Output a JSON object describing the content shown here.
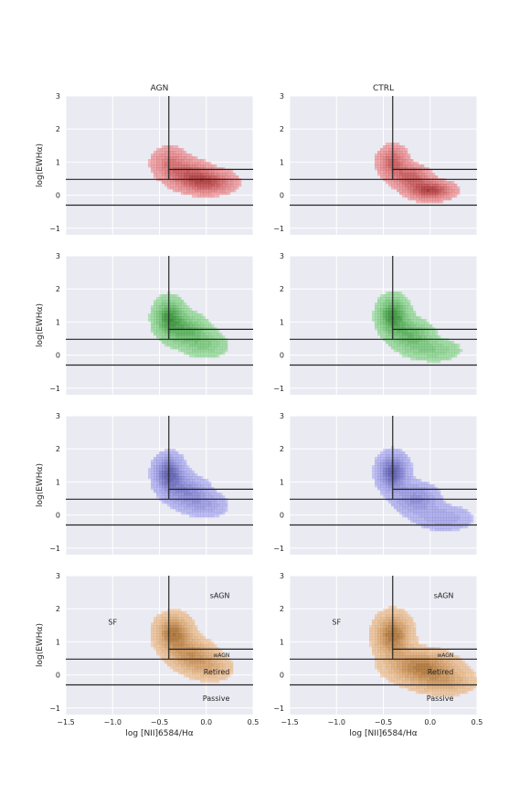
{
  "figure": {
    "column_titles": [
      "AGN",
      "CTRL"
    ],
    "xlabel": "log [NII]6584/Hα",
    "ylabel": "log(EWHα)",
    "xlim": [
      -1.5,
      0.5
    ],
    "ylim": [
      -1.2,
      3.0
    ],
    "xticks": [
      -1.5,
      -1.0,
      -0.5,
      0.0,
      0.5
    ],
    "xtick_labels": [
      "−1.5",
      "−1.0",
      "−0.5",
      "0.0",
      "0.5"
    ],
    "yticks": [
      -1,
      0,
      1,
      2,
      3
    ],
    "ytick_labels": [
      "−1",
      "0",
      "1",
      "2",
      "3"
    ],
    "background": "#eaeaf2",
    "grid": true,
    "divider_lines": {
      "vertical_x": -0.4,
      "horizontal_y_full": [
        0.4771,
        -0.301
      ],
      "horizontal_y_partial": 0.7782
    },
    "row_colors": [
      "#f03030",
      "#2ec42e",
      "#6a6af0",
      "#f0902a"
    ],
    "region_labels": [
      {
        "text": "sAGN",
        "x": 0.25,
        "y": 2.4,
        "small": false
      },
      {
        "text": "SF",
        "x": -1.0,
        "y": 1.6,
        "small": false
      },
      {
        "text": "wAGN",
        "x": 0.25,
        "y": 0.62,
        "small": true
      },
      {
        "text": "Retired",
        "x": 0.25,
        "y": 0.1,
        "small": false
      },
      {
        "text": "Passive",
        "x": 0.25,
        "y": -0.7,
        "small": false
      }
    ]
  },
  "chart_data": {
    "type": "contour",
    "panels": [
      {
        "row": 0,
        "column": "AGN",
        "color": "#f03030",
        "peaks": [
          {
            "x": -0.4,
            "y": 1.0,
            "sx": 0.12,
            "sy": 0.3,
            "w": 0.5
          },
          {
            "x": 0.0,
            "y": 0.4,
            "sx": 0.18,
            "sy": 0.22,
            "w": 1.0
          },
          {
            "x": -0.2,
            "y": 0.7,
            "sx": 0.15,
            "sy": 0.25,
            "w": 0.6
          }
        ]
      },
      {
        "row": 0,
        "column": "CTRL",
        "color": "#f03030",
        "peaks": [
          {
            "x": -0.4,
            "y": 1.0,
            "sx": 0.1,
            "sy": 0.3,
            "w": 0.7
          },
          {
            "x": 0.0,
            "y": 0.15,
            "sx": 0.15,
            "sy": 0.18,
            "w": 1.0
          },
          {
            "x": -0.2,
            "y": 0.55,
            "sx": 0.12,
            "sy": 0.22,
            "w": 0.7
          }
        ]
      },
      {
        "row": 1,
        "column": "AGN",
        "color": "#2ec42e",
        "peaks": [
          {
            "x": -0.4,
            "y": 1.15,
            "sx": 0.1,
            "sy": 0.35,
            "w": 1.0
          },
          {
            "x": -0.2,
            "y": 0.75,
            "sx": 0.14,
            "sy": 0.3,
            "w": 0.7
          },
          {
            "x": 0.0,
            "y": 0.3,
            "sx": 0.15,
            "sy": 0.25,
            "w": 0.4
          }
        ]
      },
      {
        "row": 1,
        "column": "CTRL",
        "color": "#2ec42e",
        "peaks": [
          {
            "x": -0.4,
            "y": 1.2,
            "sx": 0.1,
            "sy": 0.35,
            "w": 1.0
          },
          {
            "x": -0.2,
            "y": 0.6,
            "sx": 0.14,
            "sy": 0.3,
            "w": 0.6
          },
          {
            "x": 0.05,
            "y": 0.15,
            "sx": 0.18,
            "sy": 0.22,
            "w": 0.35
          }
        ]
      },
      {
        "row": 2,
        "column": "AGN",
        "color": "#6a6af0",
        "peaks": [
          {
            "x": -0.4,
            "y": 1.25,
            "sx": 0.1,
            "sy": 0.35,
            "w": 1.0
          },
          {
            "x": -0.2,
            "y": 0.7,
            "sx": 0.14,
            "sy": 0.3,
            "w": 0.6
          },
          {
            "x": 0.0,
            "y": 0.3,
            "sx": 0.15,
            "sy": 0.25,
            "w": 0.35
          }
        ]
      },
      {
        "row": 2,
        "column": "CTRL",
        "color": "#6a6af0",
        "peaks": [
          {
            "x": -0.4,
            "y": 1.3,
            "sx": 0.1,
            "sy": 0.35,
            "w": 1.0
          },
          {
            "x": -0.15,
            "y": 0.5,
            "sx": 0.15,
            "sy": 0.3,
            "w": 0.55
          },
          {
            "x": 0.15,
            "y": -0.1,
            "sx": 0.2,
            "sy": 0.25,
            "w": 0.35
          }
        ]
      },
      {
        "row": 3,
        "column": "AGN",
        "color": "#f0902a",
        "peaks": [
          {
            "x": -0.35,
            "y": 1.25,
            "sx": 0.12,
            "sy": 0.35,
            "w": 1.0
          },
          {
            "x": -0.15,
            "y": 0.6,
            "sx": 0.15,
            "sy": 0.3,
            "w": 0.7
          },
          {
            "x": 0.05,
            "y": 0.2,
            "sx": 0.15,
            "sy": 0.25,
            "w": 0.4
          }
        ]
      },
      {
        "row": 3,
        "column": "CTRL",
        "color": "#f0902a",
        "peaks": [
          {
            "x": -0.4,
            "y": 1.2,
            "sx": 0.12,
            "sy": 0.4,
            "w": 1.0
          },
          {
            "x": -0.1,
            "y": 0.25,
            "sx": 0.22,
            "sy": 0.3,
            "w": 0.9
          },
          {
            "x": 0.15,
            "y": -0.2,
            "sx": 0.2,
            "sy": 0.25,
            "w": 0.5
          }
        ]
      }
    ]
  }
}
